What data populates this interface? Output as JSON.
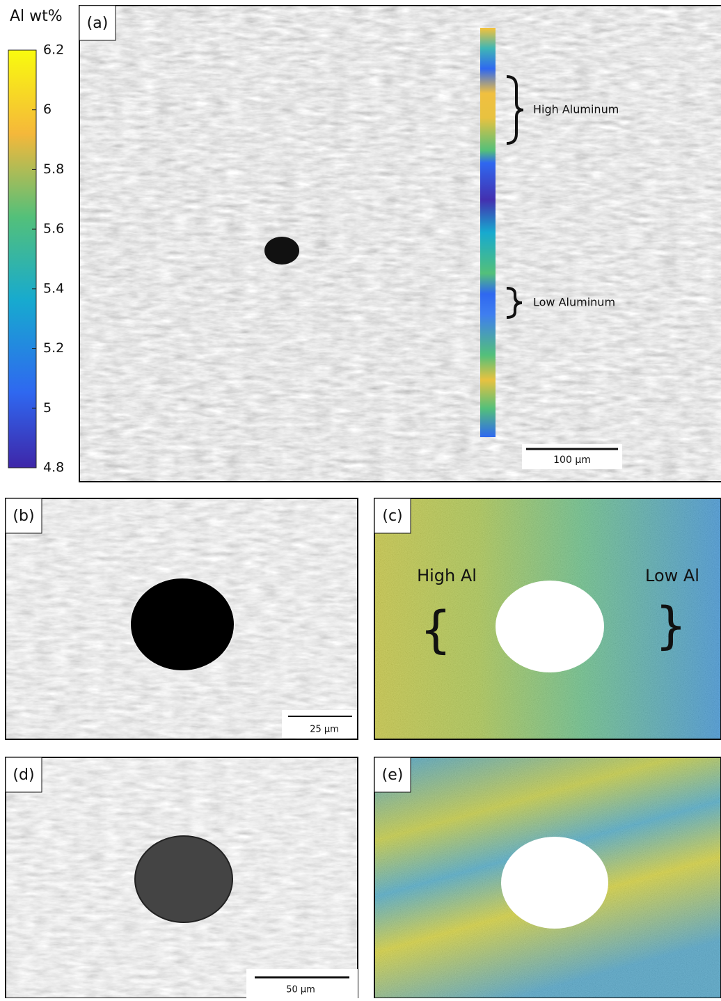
{
  "colorbar": {
    "title": "Al wt%",
    "lim": [
      4.8,
      6.2
    ],
    "ticks": [
      6.2,
      6,
      5.8,
      5.6,
      5.4,
      5.2,
      5,
      4.8
    ]
  },
  "panels": [
    {
      "label": "(a)",
      "annotations": [
        "High Aluminum",
        "Low Aluminum"
      ],
      "scale_bar": "100 µm"
    },
    {
      "label": "(b)",
      "scale_bar": "25 µm"
    },
    {
      "label": "(c)",
      "annotations": [
        "High Al",
        "Low Al"
      ]
    },
    {
      "label": "(d)",
      "scale_bar": "50 µm"
    },
    {
      "label": "(e)"
    }
  ]
}
